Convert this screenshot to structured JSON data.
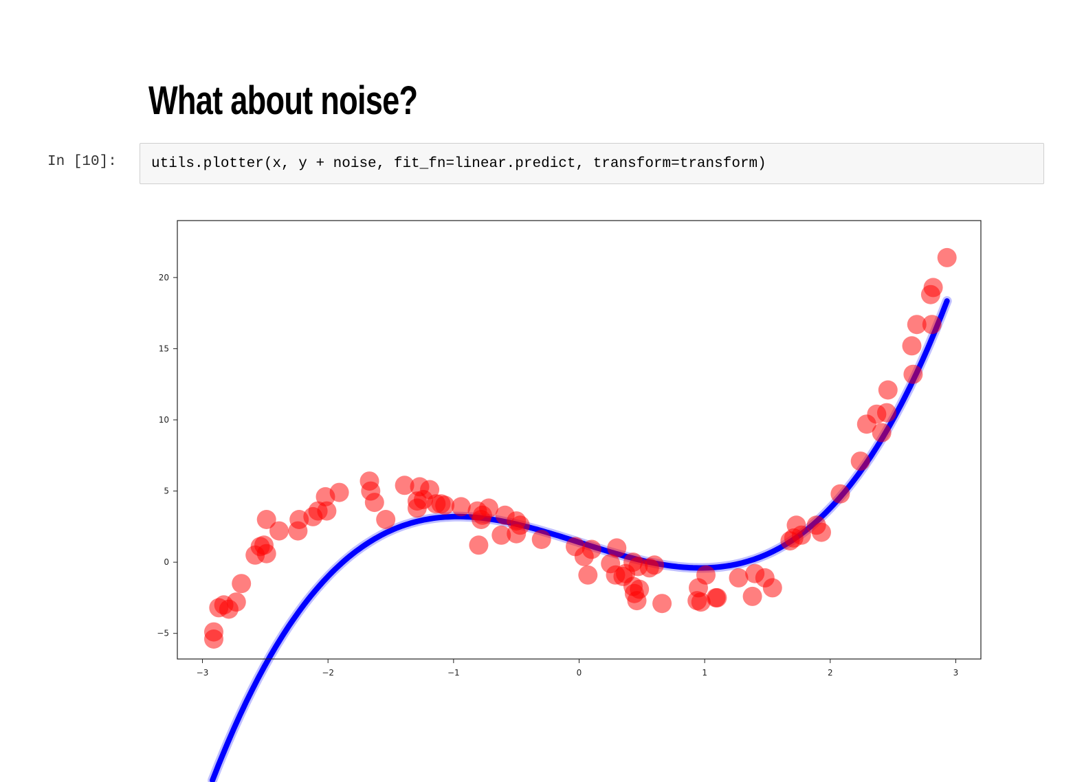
{
  "heading": "What about noise?",
  "cell": {
    "prompt": "In [10]:",
    "code": "utils.plotter(x, y + noise, fit_fn=linear.predict, transform=transform)"
  },
  "colors": {
    "points": "#ff0000",
    "fit_line": "#0000ff"
  },
  "chart_data": {
    "type": "scatter",
    "xlim": [
      -3.2,
      3.2
    ],
    "ylim": [
      -6.8,
      24
    ],
    "x_ticks": [
      -3,
      -2,
      -1,
      0,
      1,
      2,
      3
    ],
    "y_ticks": [
      -5,
      0,
      5,
      10,
      15,
      20
    ],
    "x_tick_labels": [
      "−3",
      "−2",
      "−1",
      "0",
      "1",
      "2",
      "3"
    ],
    "y_tick_labels": [
      "−5",
      "0",
      "5",
      "10",
      "15",
      "20"
    ],
    "grid": false,
    "series": [
      {
        "kind": "points",
        "x": [
          -2.91,
          -2.91,
          -2.87,
          -2.83,
          -2.79,
          -2.73,
          -2.69,
          -2.58,
          -2.54,
          -2.51,
          -2.49,
          -2.49,
          -2.39,
          -2.24,
          -2.23,
          -2.12,
          -2.08,
          -2.02,
          -2.01,
          -1.91,
          -1.67,
          -1.66,
          -1.63,
          -1.54,
          -1.39,
          -1.29,
          -1.29,
          -1.27,
          -1.24,
          -1.19,
          -1.14,
          -1.1,
          -1.07,
          -0.94,
          -0.81,
          -0.8,
          -0.78,
          -0.77,
          -0.72,
          -0.62,
          -0.59,
          -0.5,
          -0.5,
          -0.47,
          -0.3,
          -0.03,
          0.04,
          0.07,
          0.1,
          0.25,
          0.29,
          0.3,
          0.35,
          0.37,
          0.43,
          0.43,
          0.44,
          0.46,
          0.47,
          0.48,
          0.56,
          0.6,
          0.66,
          0.94,
          0.95,
          0.97,
          1.01,
          1.09,
          1.1,
          1.27,
          1.38,
          1.4,
          1.48,
          1.54,
          1.68,
          1.71,
          1.73,
          1.77,
          1.89,
          1.93,
          2.08,
          2.24,
          2.29,
          2.37,
          2.41,
          2.45,
          2.46,
          2.65,
          2.66,
          2.69,
          2.8,
          2.81,
          2.82,
          2.93
        ],
        "y": [
          -4.9,
          -5.4,
          -3.2,
          -3.0,
          -3.3,
          -2.8,
          -1.5,
          0.5,
          1.1,
          1.2,
          0.6,
          3.0,
          2.2,
          2.2,
          3.0,
          3.2,
          3.6,
          4.6,
          3.6,
          4.9,
          5.7,
          5.0,
          4.2,
          3.0,
          5.4,
          4.3,
          3.8,
          5.3,
          4.4,
          5.1,
          4.1,
          4.1,
          4.0,
          3.9,
          3.6,
          1.2,
          3.0,
          3.3,
          3.8,
          1.9,
          3.3,
          2.9,
          2.0,
          2.6,
          1.6,
          1.1,
          0.4,
          -0.9,
          0.9,
          -0.1,
          -0.9,
          1.0,
          -1.0,
          -0.8,
          -1.7,
          0.0,
          -2.2,
          -2.7,
          -0.3,
          -1.9,
          -0.4,
          -0.2,
          -2.9,
          -2.7,
          -1.8,
          -2.8,
          -0.9,
          -2.5,
          -2.5,
          -1.1,
          -2.4,
          -0.8,
          -1.1,
          -1.8,
          1.5,
          1.7,
          2.6,
          1.9,
          2.6,
          2.1,
          4.8,
          7.1,
          9.7,
          10.4,
          9.1,
          10.5,
          12.1,
          15.2,
          13.2,
          16.7,
          18.8,
          16.7,
          19.3,
          21.4
        ]
      },
      {
        "kind": "fit_line",
        "function": "cubic",
        "coefficients_high_to_low": [
          1.0,
          0.0,
          -2.8,
          1.4
        ],
        "x_range": [
          -2.92,
          2.93
        ]
      }
    ]
  }
}
